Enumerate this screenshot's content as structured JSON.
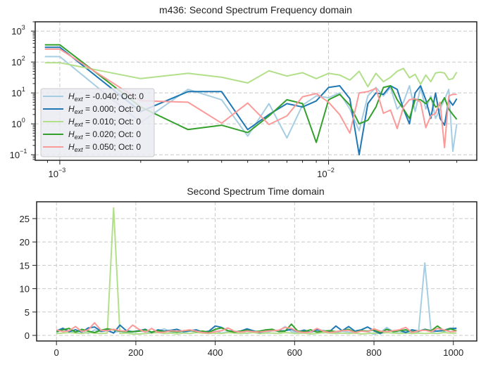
{
  "chart_data": [
    {
      "type": "line",
      "title": "m436: Second Spectrum Frequency domain",
      "xscale": "log",
      "yscale": "log",
      "xlim": [
        0.00081,
        0.0356
      ],
      "ylim": [
        0.066,
        2000
      ],
      "grid": true,
      "xticks": [
        {
          "base": "10",
          "exp": "−3",
          "value": 0.001
        },
        {
          "base": "10",
          "exp": "−2",
          "value": 0.01
        }
      ],
      "yticks": [
        {
          "base": "10",
          "exp": "−1",
          "value": 0.1
        },
        {
          "base": "10",
          "exp": "0",
          "value": 1
        },
        {
          "base": "10",
          "exp": "1",
          "value": 10
        },
        {
          "base": "10",
          "exp": "2",
          "value": 100
        },
        {
          "base": "10",
          "exp": "3",
          "value": 1000
        }
      ],
      "legend_position": "center-left",
      "x": [
        0.00088,
        0.001,
        0.002,
        0.003,
        0.004,
        0.005,
        0.006,
        0.007,
        0.008,
        0.009,
        0.01,
        0.011,
        0.012,
        0.013,
        0.014,
        0.015,
        0.016,
        0.017,
        0.018,
        0.019,
        0.02,
        0.021,
        0.022,
        0.023,
        0.024,
        0.025,
        0.026,
        0.027,
        0.028,
        0.029,
        0.03
      ],
      "series": [
        {
          "name": "H_ext = -0.040; Oct: 0",
          "sym": "H",
          "sub": "ext",
          "label": " = -0.040; Oct: 0",
          "color": "#a6cee3",
          "values": [
            150,
            150,
            1.1,
            13,
            6,
            0.4,
            4.5,
            0.35,
            4,
            8,
            7,
            10,
            3,
            0.6,
            8,
            15,
            8,
            15,
            3,
            5,
            17,
            2.5,
            15,
            3,
            8,
            1.5,
            3,
            6,
            13,
            0.13,
            1
          ]
        },
        {
          "name": "H_ext = 0.000; Oct: 0",
          "sym": "H",
          "sub": "ext",
          "label": " = 0.000; Oct: 0",
          "color": "#1f78b4",
          "values": [
            300,
            300,
            2.5,
            11,
            11,
            0.65,
            2,
            4.5,
            3.5,
            5.5,
            15,
            17,
            6.5,
            0.1,
            4.5,
            10,
            9,
            17,
            13,
            3,
            1,
            10,
            17,
            6,
            1.5,
            10,
            1.5,
            0.9,
            6,
            4,
            6.5
          ]
        },
        {
          "name": "H_ext = 0.010; Oct: 0",
          "sym": "H",
          "sub": "ext",
          "label": " = 0.010; Oct: 0",
          "color": "#b2df8a",
          "values": [
            95,
            95,
            29,
            43,
            32,
            21,
            52,
            35,
            45,
            29,
            43,
            38,
            26,
            50,
            16,
            43,
            23,
            32,
            50,
            62,
            31,
            40,
            19,
            38,
            23,
            44,
            47,
            44,
            27,
            29,
            47
          ]
        },
        {
          "name": "H_ext = 0.020; Oct: 0",
          "sym": "H",
          "sub": "ext",
          "label": " = 0.020; Oct: 0",
          "color": "#33a02c",
          "values": [
            360,
            360,
            3.5,
            0.65,
            0.9,
            0.52,
            1.8,
            6,
            4.5,
            0.25,
            6,
            9,
            4,
            1,
            1.3,
            3.5,
            15,
            17,
            6,
            3,
            1.5,
            6,
            6,
            4.5,
            7,
            3.5,
            4,
            7,
            3,
            2,
            1.4
          ]
        },
        {
          "name": "H_ext = 0.050; Oct: 0",
          "sym": "H",
          "sub": "ext",
          "label": " = 0.050; Oct: 0",
          "color": "#fb9a99",
          "values": [
            260,
            260,
            5.6,
            5,
            1.05,
            4.7,
            0.95,
            1.8,
            7.5,
            9.5,
            5,
            2,
            0.5,
            10,
            11,
            14,
            2.2,
            2.8,
            0.7,
            3.5,
            6,
            6.5,
            5,
            0.75,
            1.8,
            2.2,
            5,
            0.17,
            8,
            9,
            9
          ]
        }
      ]
    },
    {
      "type": "line",
      "title": "Second Spectrum Time domain",
      "xlim": [
        -50,
        1059
      ],
      "ylim": [
        -1.2,
        28.6
      ],
      "grid": true,
      "xticks": [
        "0",
        "200",
        "400",
        "600",
        "800",
        "1000"
      ],
      "yticks": [
        "0",
        "5",
        "10",
        "15",
        "20",
        "25"
      ],
      "x_start": 0,
      "x_step": 16,
      "series": [
        {
          "name": "H_ext = -0.040; Oct: 0",
          "color": "#a6cee3",
          "values": [
            0.5,
            1.6,
            0.8,
            0.6,
            1.0,
            0.4,
            1.2,
            0.8,
            1.0,
            0.6,
            0.9,
            0.5,
            0.7,
            0.9,
            0.8,
            0.5,
            1.0,
            1.4,
            0.7,
            0.8,
            0.6,
            0.9,
            0.8,
            0.5,
            0.7,
            1.0,
            0.5,
            0.8,
            0.6,
            0.9,
            0.4,
            0.7,
            0.8,
            0.6,
            1.0,
            0.9,
            1.9,
            0.8,
            0.6,
            1.2,
            0.7,
            0.9,
            0.5,
            0.8,
            0.6,
            0.9,
            0.7,
            0.5,
            1.1,
            0.8,
            0.2,
            0.6,
            1.7,
            0.8,
            0.5,
            0.9,
            0.5,
            0.6,
            15.5,
            0.6,
            1.0,
            0.8,
            1.3,
            1.6
          ]
        },
        {
          "name": "H_ext = 0.010; Oct: 0",
          "color": "#b2df8a",
          "values": [
            0.4,
            0.5,
            0.6,
            0.5,
            0.4,
            0.6,
            0.5,
            0.4,
            0.5,
            27.3,
            0.4,
            0.5,
            0.3,
            0.3,
            0.4,
            0.5,
            0.6,
            0.4,
            0.5,
            0.3,
            0.5,
            0.4,
            0.6,
            0.5,
            0.4,
            0.5,
            0.4,
            0.6,
            0.5,
            0.4,
            0.5,
            0.6,
            0.4,
            0.5,
            0.5,
            0.4,
            0.6,
            0.5,
            0.4,
            0.5,
            0.3,
            0.4,
            0.6,
            0.5,
            0.4,
            0.5,
            0.4,
            0.5,
            0.3,
            0.4,
            0.5,
            0.4,
            0.6,
            0.5,
            0.4,
            0.5,
            0.4,
            0.5,
            0.4,
            0.5,
            0.4,
            0.6,
            0.5,
            0.5
          ]
        },
        {
          "name": "H_ext = 0.000; Oct: 0",
          "color": "#1f78b4",
          "values": [
            1.0,
            1.5,
            0.8,
            1.2,
            0.7,
            1.6,
            1.8,
            0.9,
            1.1,
            0.5,
            2.2,
            1.0,
            0.8,
            1.0,
            1.3,
            0.6,
            1.2,
            0.9,
            1.1,
            1.3,
            0.8,
            1.0,
            1.2,
            0.7,
            0.9,
            2.0,
            1.7,
            1.0,
            0.8,
            0.9,
            1.4,
            1.0,
            0.6,
            1.0,
            1.2,
            0.9,
            1.0,
            1.3,
            0.8,
            1.1,
            0.7,
            1.2,
            1.0,
            0.8,
            2.0,
            1.0,
            1.9,
            0.9,
            1.2,
            1.8,
            1.0,
            0.4,
            1.3,
            0.9,
            1.1,
            0.6,
            1.2,
            0.9,
            1.3,
            1.0,
            0.9,
            1.1,
            1.5,
            1.5
          ]
        },
        {
          "name": "H_ext = 0.020; Oct: 0",
          "color": "#33a02c",
          "values": [
            0.8,
            1.2,
            1.5,
            0.7,
            1.3,
            0.9,
            0.6,
            1.1,
            1.4,
            1.2,
            0.9,
            0.8,
            0.8,
            0.9,
            1.2,
            0.7,
            1.0,
            0.8,
            0.9,
            0.7,
            1.0,
            1.1,
            0.8,
            0.9,
            0.7,
            1.3,
            1.6,
            1.0,
            0.7,
            0.9,
            1.1,
            0.8,
            0.9,
            1.2,
            1.3,
            0.8,
            0.9,
            2.4,
            0.9,
            0.8,
            1.2,
            0.7,
            0.9,
            1.0,
            0.8,
            1.0,
            1.3,
            0.7,
            1.0,
            0.9,
            1.2,
            0.6,
            1.3,
            0.8,
            1.0,
            1.2,
            0.8,
            0.9,
            1.2,
            1.0,
            2.0,
            1.0,
            1.4,
            1.0
          ]
        },
        {
          "name": "H_ext = 0.050; Oct: 0",
          "color": "#fb9a99",
          "values": [
            1.2,
            0.8,
            1.0,
            1.9,
            0.8,
            1.2,
            2.7,
            1.1,
            1.0,
            1.3,
            1.0,
            0.9,
            2.2,
            1.3,
            0.7,
            1.5,
            0.6,
            0.7,
            1.0,
            0.9,
            1.0,
            1.2,
            0.9,
            0.6,
            0.5,
            0.8,
            1.0,
            1.6,
            0.9,
            0.7,
            0.9,
            0.8,
            0.7,
            0.9,
            1.0,
            1.1,
            1.7,
            1.5,
            0.8,
            0.6,
            0.7,
            1.5,
            0.9,
            0.6,
            0.8,
            1.0,
            1.1,
            0.6,
            0.9,
            0.8,
            1.4,
            0.9,
            0.8,
            1.0,
            1.2,
            1.7,
            0.6,
            1.0,
            1.1,
            0.8,
            1.5,
            1.2,
            0.8,
            0.9
          ]
        }
      ]
    }
  ]
}
